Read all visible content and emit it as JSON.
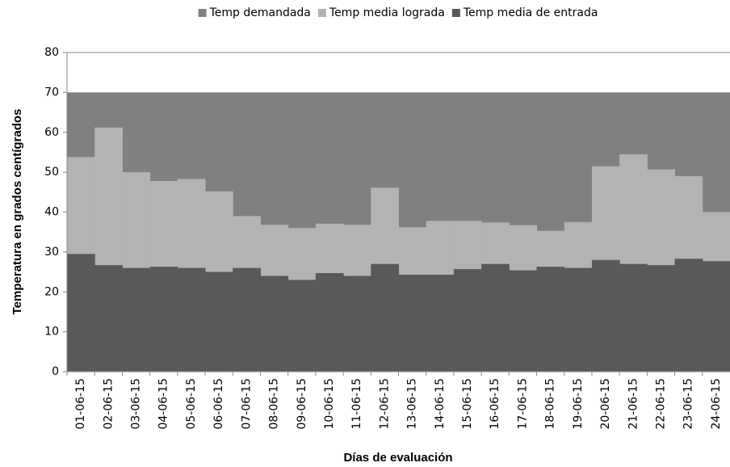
{
  "chart_data": {
    "type": "area",
    "xlabel": "Días de evaluación",
    "ylabel": "Temperatura en grados centígrados",
    "categories": [
      "01-06-15",
      "02-06-15",
      "03-06-15",
      "04-06-15",
      "05-06-15",
      "06-06-15",
      "07-06-15",
      "08-06-15",
      "09-06-15",
      "10-06-15",
      "11-06-15",
      "12-06-15",
      "13-06-15",
      "14-06-15",
      "15-06-15",
      "16-06-15",
      "17-06-15",
      "18-06-15",
      "19-06-15",
      "20-06-15",
      "21-06-15",
      "22-06-15",
      "23-06-15",
      "24-06-15"
    ],
    "series": [
      {
        "name": "Temp demandada",
        "color": "#808080",
        "values": [
          70,
          70,
          70,
          70,
          70,
          70,
          70,
          70,
          70,
          70,
          70,
          70,
          70,
          70,
          70,
          70,
          70,
          70,
          70,
          70,
          70,
          70,
          70,
          70
        ]
      },
      {
        "name": "Temp media lograda",
        "color": "#b3b3b3",
        "values": [
          53.8,
          61.2,
          50,
          47.8,
          48.3,
          45.2,
          39,
          36.8,
          36,
          37.1,
          36.8,
          46.1,
          36.2,
          37.8,
          37.8,
          37.4,
          36.7,
          35.3,
          37.5,
          51.5,
          54.5,
          50.7,
          49,
          40
        ]
      },
      {
        "name": "Temp media de entrada",
        "color": "#595959",
        "values": [
          29.5,
          26.7,
          26,
          26.3,
          26,
          25,
          26,
          24,
          23,
          24.7,
          24,
          27,
          24.3,
          24.3,
          25.7,
          27,
          25.4,
          26.3,
          26,
          28,
          27,
          26.7,
          28.3,
          27.7
        ]
      }
    ],
    "ylim": [
      0,
      80
    ],
    "yticks": [
      0,
      10,
      20,
      30,
      40,
      50,
      60,
      70,
      80
    ],
    "grid": false,
    "legend": "top"
  }
}
